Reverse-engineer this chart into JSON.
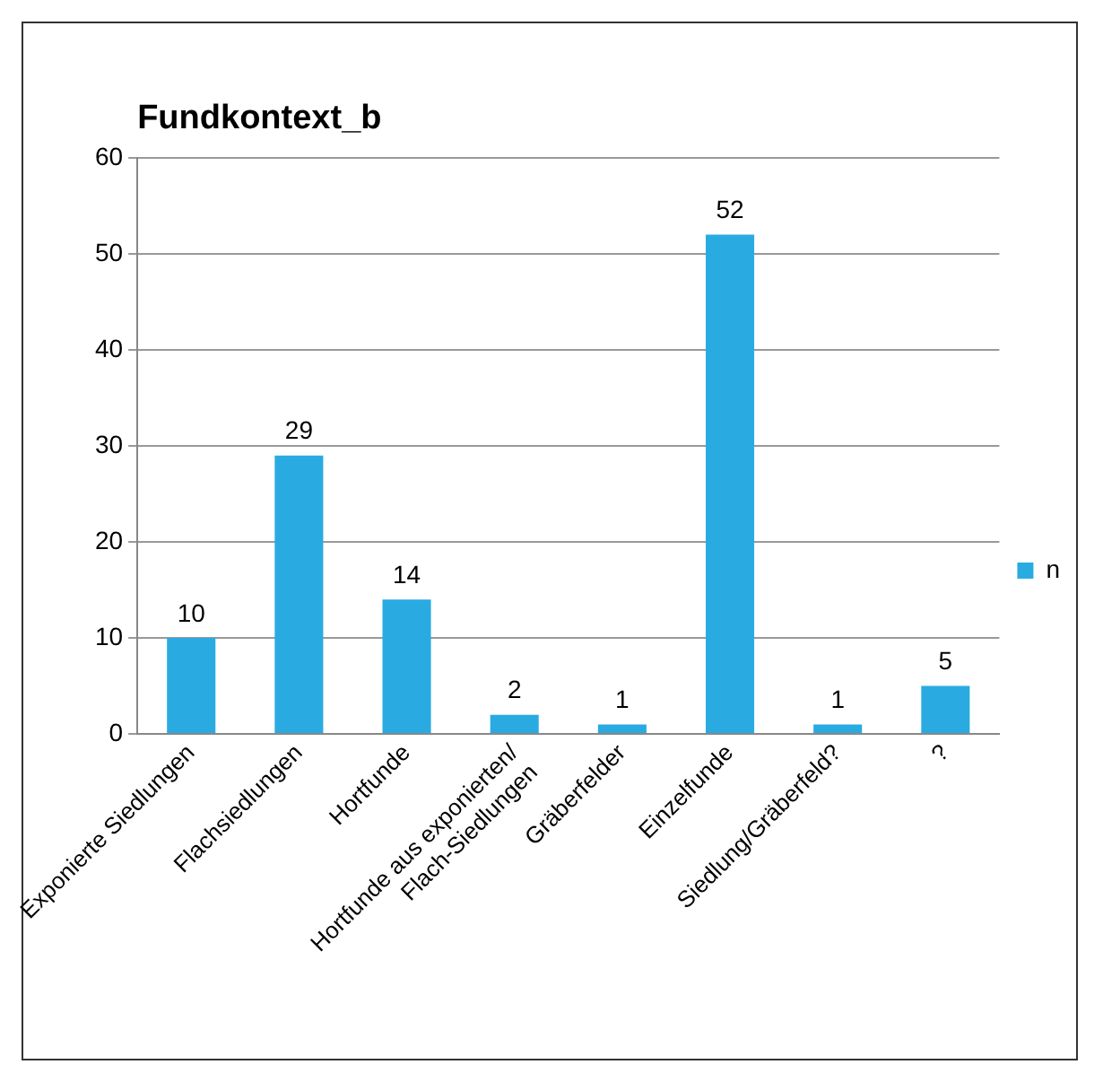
{
  "chart_data": {
    "type": "bar",
    "title": "Fundkontext_b",
    "categories": [
      "Exponierte Siedlungen",
      "Flachsiedlungen",
      "Hortfunde",
      "Hortfunde aus exponierten/\nFlach-Siedlungen",
      "Gräberfelder",
      "Einzelfunde",
      "Siedlung/Gräberfeld?",
      "?"
    ],
    "series": [
      {
        "name": "n",
        "color": "#29abe2",
        "values": [
          10,
          29,
          14,
          2,
          1,
          52,
          1,
          5
        ]
      }
    ],
    "ylim": [
      0,
      60
    ],
    "yticks": [
      0,
      10,
      20,
      30,
      40,
      50,
      60
    ],
    "grid": "y",
    "legend": "right",
    "data_labels": true
  }
}
